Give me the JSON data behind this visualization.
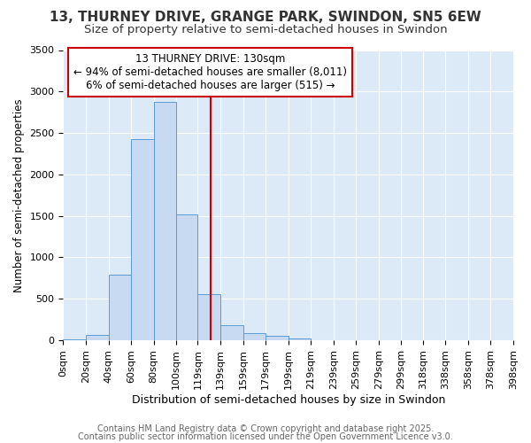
{
  "title": "13, THURNEY DRIVE, GRANGE PARK, SWINDON, SN5 6EW",
  "subtitle": "Size of property relative to semi-detached houses in Swindon",
  "xlabel": "Distribution of semi-detached houses by size in Swindon",
  "ylabel": "Number of semi-detached properties",
  "bin_labels": [
    "0sqm",
    "20sqm",
    "40sqm",
    "60sqm",
    "80sqm",
    "100sqm",
    "119sqm",
    "139sqm",
    "159sqm",
    "179sqm",
    "199sqm",
    "219sqm",
    "239sqm",
    "259sqm",
    "279sqm",
    "299sqm",
    "318sqm",
    "338sqm",
    "358sqm",
    "378sqm",
    "398sqm"
  ],
  "bar_heights": [
    15,
    65,
    790,
    2430,
    2880,
    1520,
    555,
    185,
    90,
    50,
    20,
    5,
    3,
    2,
    1,
    1,
    0,
    0,
    0,
    0
  ],
  "bar_color": "#c8daf2",
  "bar_edge_color": "#5b9bd5",
  "bin_edges": [
    0,
    20,
    40,
    60,
    80,
    100,
    119,
    139,
    159,
    179,
    199,
    219,
    239,
    259,
    279,
    299,
    318,
    338,
    358,
    378,
    398
  ],
  "property_line_x": 130,
  "annotation_line1": "13 THURNEY DRIVE: 130sqm",
  "annotation_line2": "← 94% of semi-detached houses are smaller (8,011)",
  "annotation_line3": "6% of semi-detached houses are larger (515) →",
  "vline_color": "#cc0000",
  "annotation_box_facecolor": "#ffffff",
  "annotation_box_edgecolor": "#cc0000",
  "ylim": [
    0,
    3500
  ],
  "yticks": [
    0,
    500,
    1000,
    1500,
    2000,
    2500,
    3000,
    3500
  ],
  "fig_bg_color": "#ffffff",
  "plot_bg_color": "#dce9f7",
  "grid_color": "#ffffff",
  "footer_line1": "Contains HM Land Registry data © Crown copyright and database right 2025.",
  "footer_line2": "Contains public sector information licensed under the Open Government Licence v3.0.",
  "title_fontsize": 11,
  "subtitle_fontsize": 9.5,
  "xlabel_fontsize": 9,
  "ylabel_fontsize": 8.5,
  "tick_fontsize": 8,
  "annotation_fontsize": 8.5,
  "footer_fontsize": 7
}
